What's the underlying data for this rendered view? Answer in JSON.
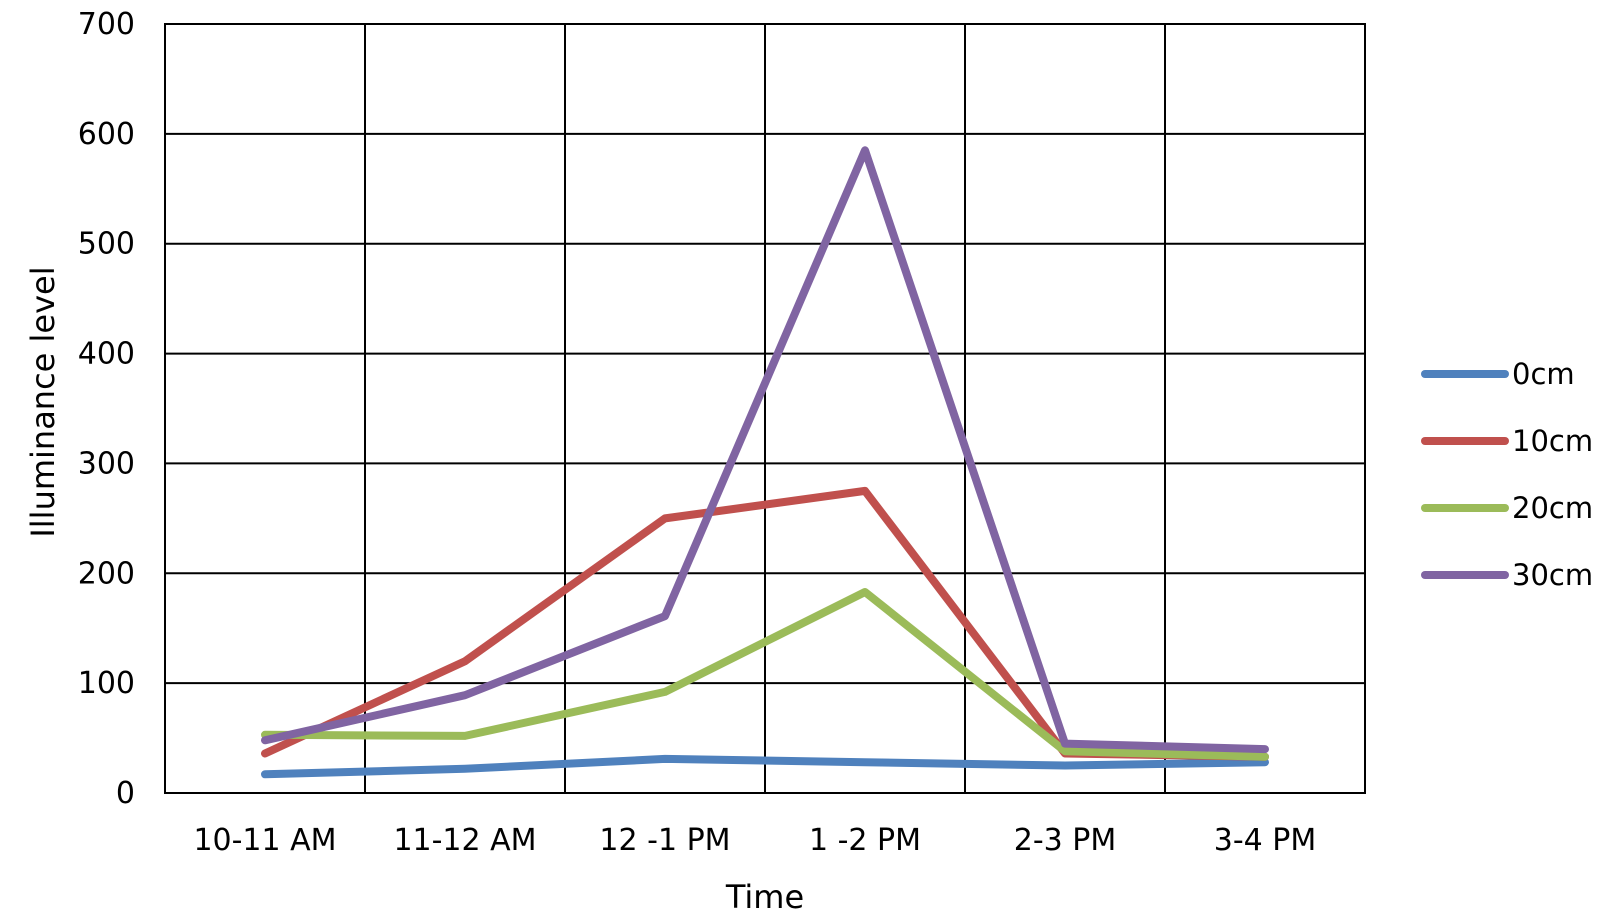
{
  "chart_data": {
    "type": "line",
    "title": "",
    "xlabel": "Time",
    "ylabel": "Illuminance level",
    "categories": [
      "10-11 AM",
      "11-12 AM",
      "12 -1 PM",
      "1 -2 PM",
      "2-3 PM",
      "3-4 PM"
    ],
    "ylim": [
      0,
      700
    ],
    "yticks": [
      0,
      100,
      200,
      300,
      400,
      500,
      600,
      700
    ],
    "grid": true,
    "legend_position": "right",
    "series": [
      {
        "name": "0cm",
        "color": "#4F81BD",
        "values": [
          17,
          22,
          31,
          28,
          25,
          28
        ]
      },
      {
        "name": "10cm",
        "color": "#C0504D",
        "values": [
          36,
          120,
          250,
          275,
          36,
          33
        ]
      },
      {
        "name": "20cm",
        "color": "#9BBB59",
        "values": [
          53,
          52,
          92,
          183,
          38,
          33
        ]
      },
      {
        "name": "30cm",
        "color": "#8064A2",
        "values": [
          48,
          89,
          161,
          585,
          45,
          40
        ]
      }
    ]
  }
}
